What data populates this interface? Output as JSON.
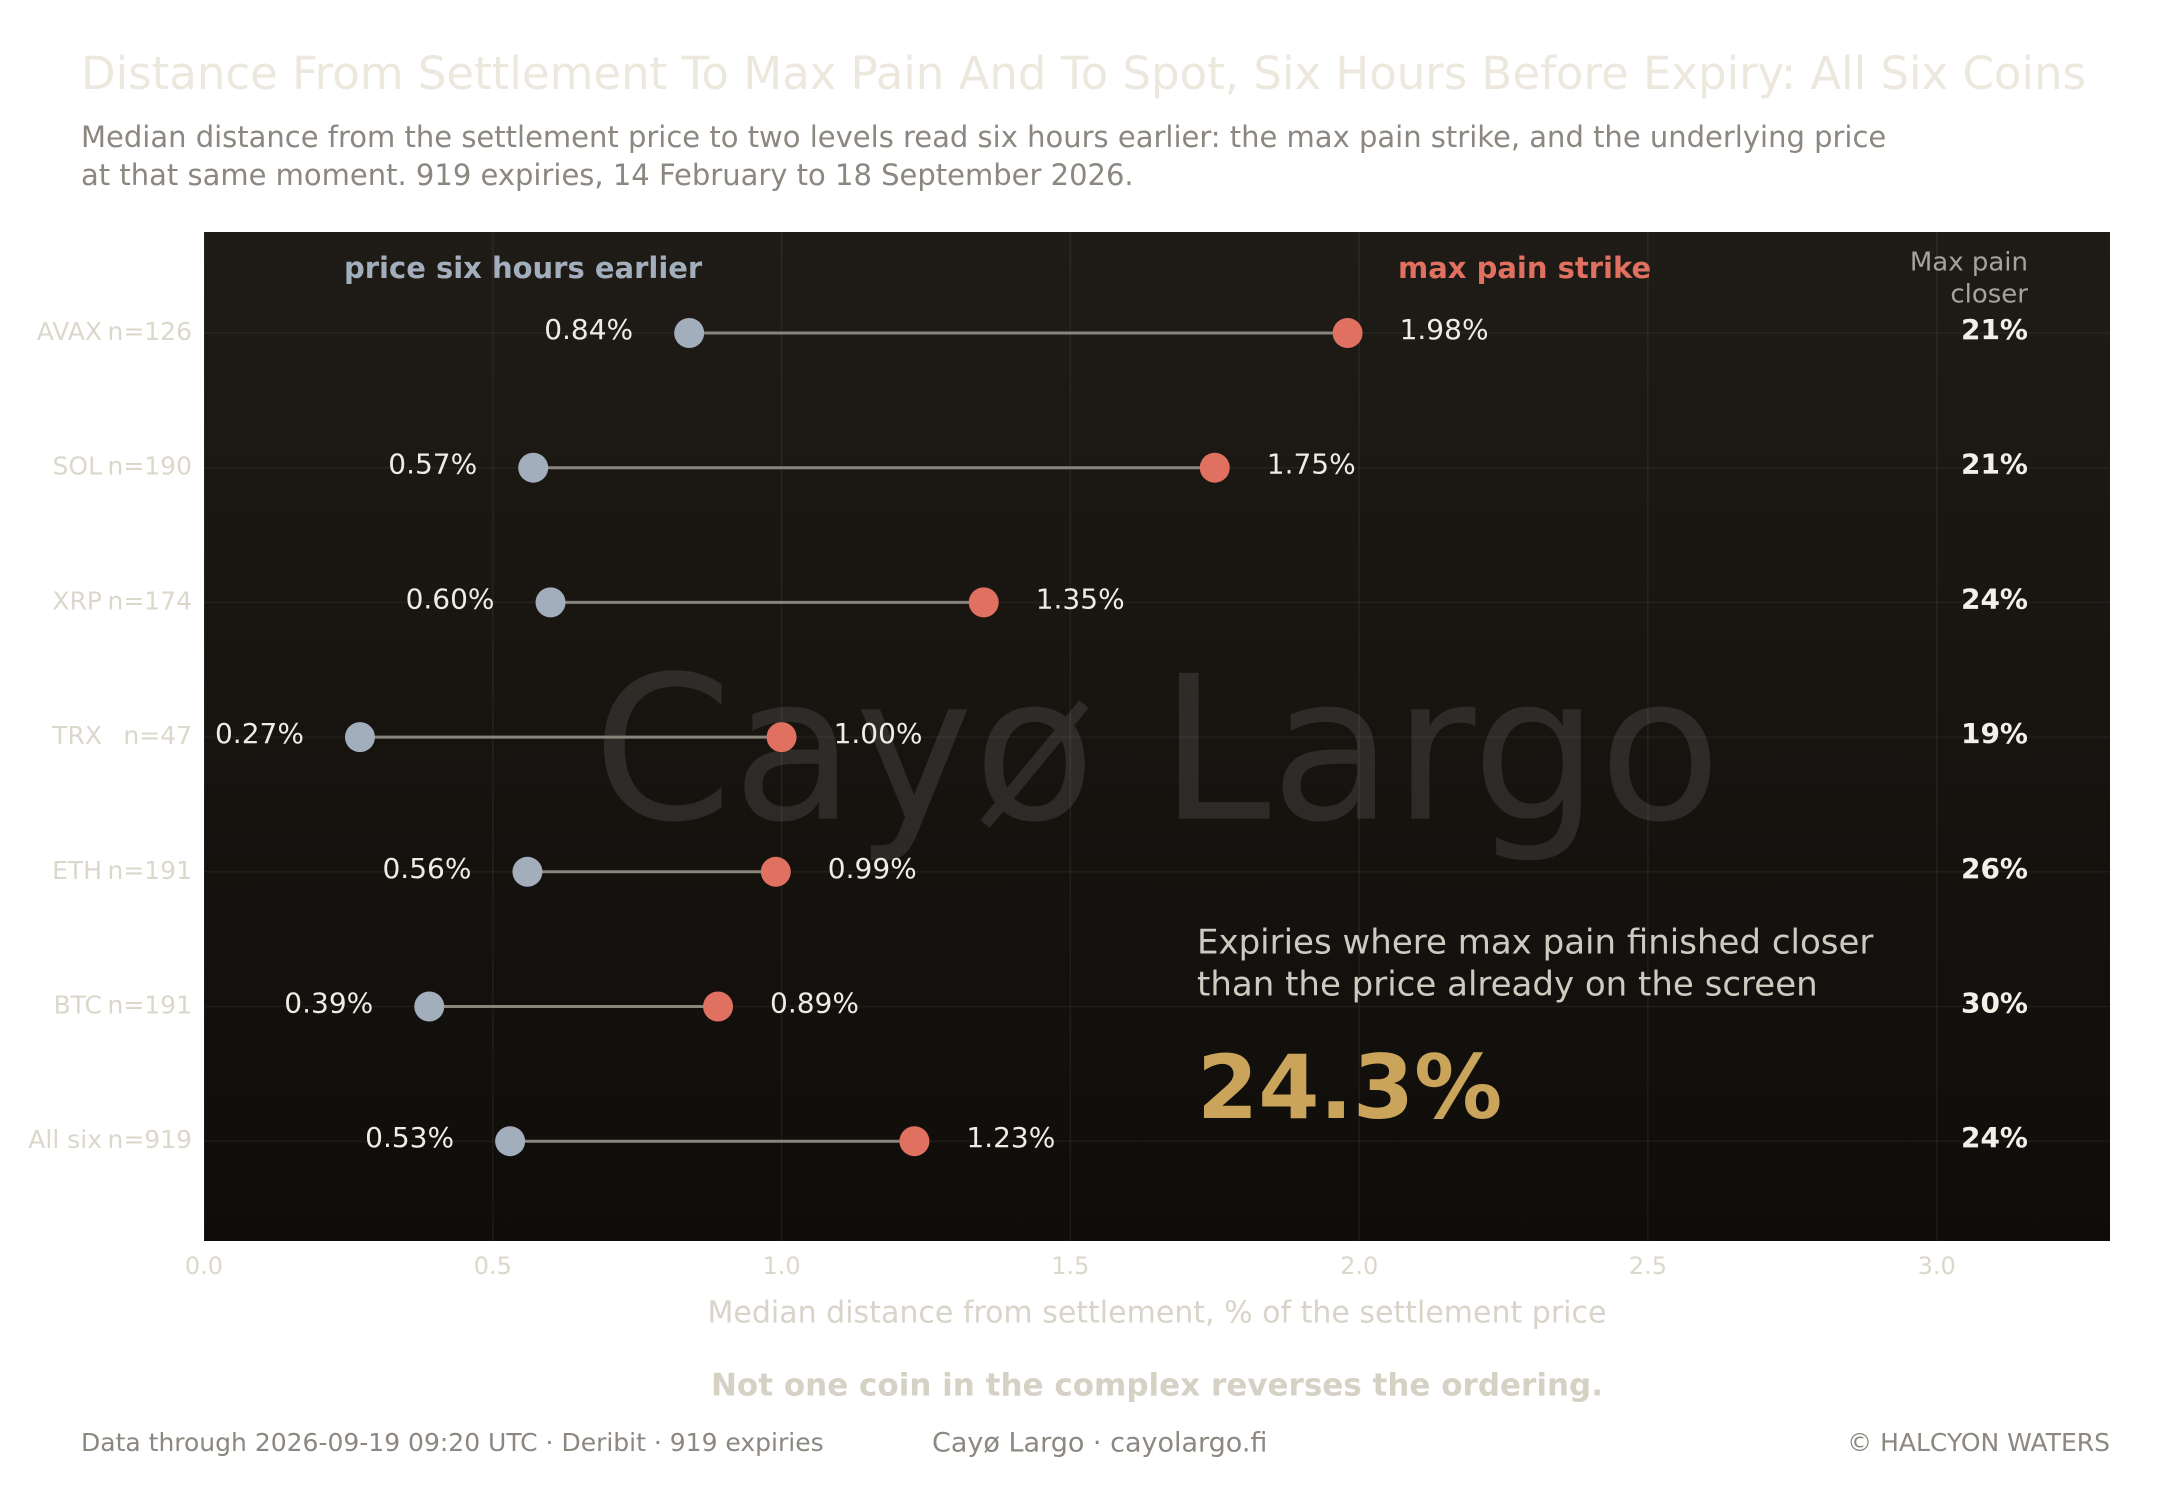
{
  "chart_data": {
    "type": "dumbbell",
    "title": "Distance From Settlement To Max Pain And To Spot, Six Hours Before Expiry: All Six Coins",
    "subtitle": [
      "Median distance from the settlement price to two levels read six hours earlier: the max pain strike, and the underlying price",
      "at that same moment. 919 expiries, 14 February to 18 September 2026."
    ],
    "categories": [
      "AVAX",
      "SOL",
      "XRP",
      "TRX",
      "ETH",
      "BTC",
      "All six"
    ],
    "n_labels": [
      "n=126",
      "n=190",
      "n=174",
      "n=47",
      "n=191",
      "n=191",
      "n=919"
    ],
    "series": [
      {
        "name": "price six hours earlier",
        "color": "#a3aebd",
        "values": [
          0.84,
          0.57,
          0.6,
          0.27,
          0.56,
          0.39,
          0.53
        ],
        "value_labels": [
          "0.84%",
          "0.57%",
          "0.60%",
          "0.27%",
          "0.56%",
          "0.39%",
          "0.53%"
        ]
      },
      {
        "name": "max pain strike",
        "color": "#e0705f",
        "values": [
          1.98,
          1.75,
          1.35,
          1.0,
          0.99,
          0.89,
          1.23
        ],
        "value_labels": [
          "1.98%",
          "1.75%",
          "1.35%",
          "1.00%",
          "0.99%",
          "0.89%",
          "1.23%"
        ]
      }
    ],
    "max_pain_closer": {
      "title": [
        "Max pain",
        "closer"
      ],
      "values": [
        21,
        21,
        24,
        19,
        26,
        30,
        24
      ],
      "value_labels": [
        "21%",
        "21%",
        "24%",
        "19%",
        "26%",
        "30%",
        "24%"
      ]
    },
    "xlim": [
      0,
      3.3
    ],
    "xticks": [
      {
        "value": 0,
        "label": "0.0"
      },
      0.5,
      {
        "value": 1,
        "label": "1.0"
      },
      1.5,
      {
        "value": 2,
        "label": "2.0"
      },
      2.5,
      {
        "value": 3,
        "label": "3.0"
      }
    ],
    "xlabel": "Median distance from settlement, % of the settlement price",
    "grid": true,
    "annotation": {
      "text": [
        "Expiries where max pain finished closer",
        "than the price already on the screen"
      ],
      "value": 24.3,
      "value_label": "24.3%"
    },
    "watermark": "Cayø Largo",
    "note": "Not one coin in the complex reverses the ordering.",
    "footer": {
      "left": "Data through 2026-09-19 09:20 UTC  ·  Deribit  ·  919 expiries",
      "center": "Cayø Largo  ·  cayolargo.fi",
      "right": "© HALCYON WATERS"
    }
  }
}
